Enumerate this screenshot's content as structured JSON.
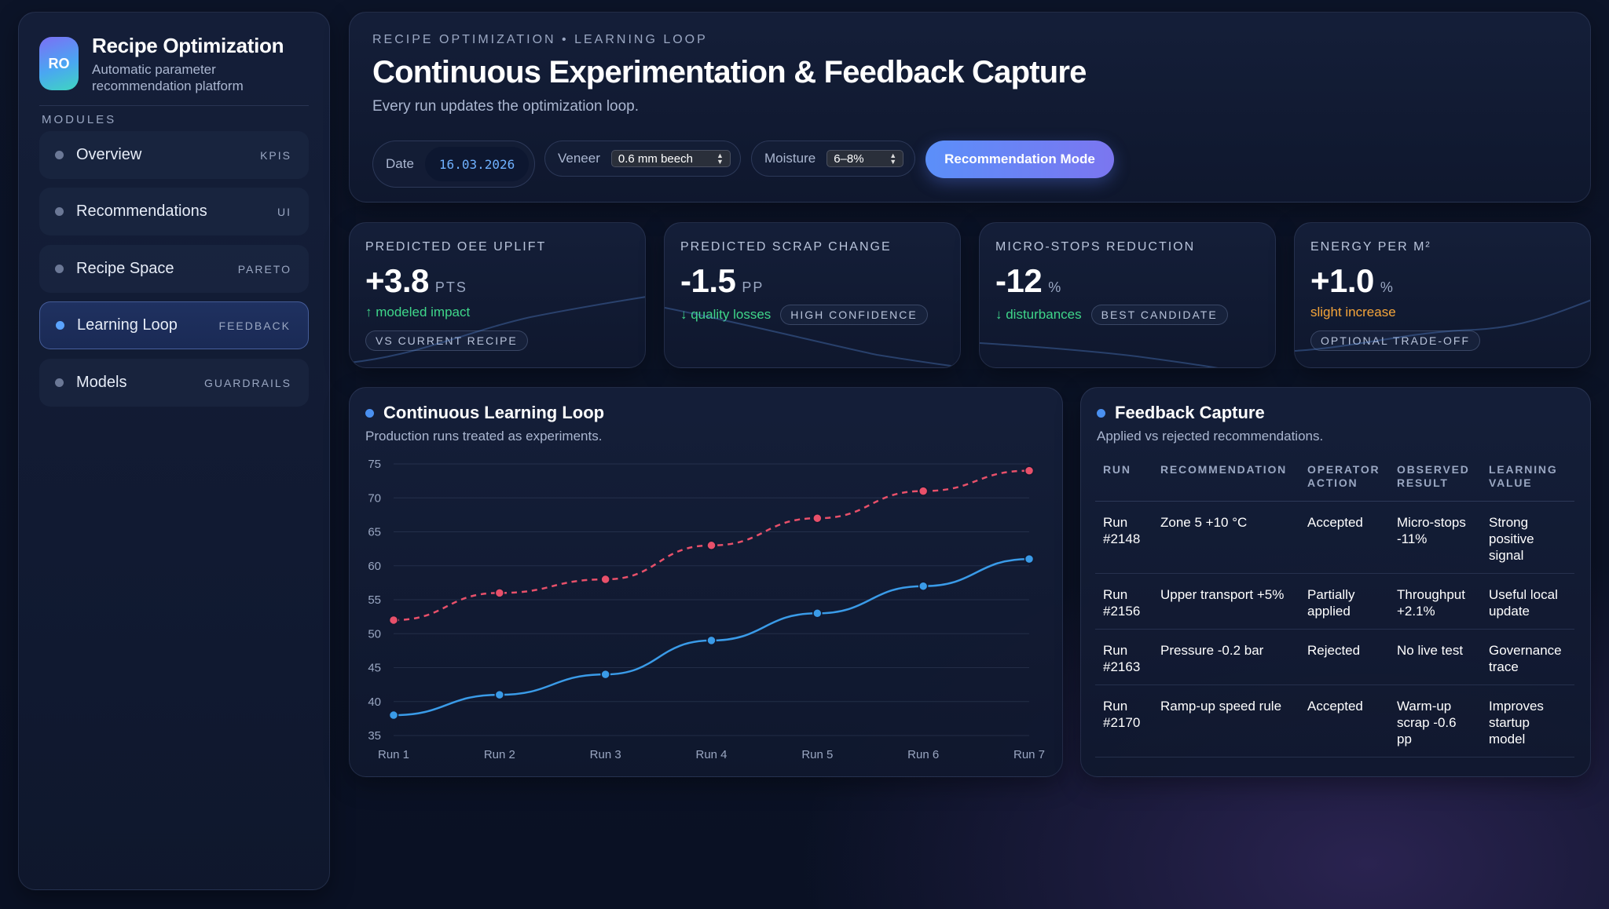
{
  "sidebar": {
    "logo": "RO",
    "title": "Recipe Optimization",
    "subtitle": "Automatic parameter recommendation platform",
    "section": "MODULES",
    "items": [
      {
        "label": "Overview",
        "tag": "KPIS"
      },
      {
        "label": "Recommendations",
        "tag": "UI"
      },
      {
        "label": "Recipe Space",
        "tag": "PARETO"
      },
      {
        "label": "Learning Loop",
        "tag": "FEEDBACK",
        "active": true
      },
      {
        "label": "Models",
        "tag": "GUARDRAILS"
      }
    ]
  },
  "header": {
    "eyebrow": "RECIPE OPTIMIZATION • LEARNING LOOP",
    "title": "Continuous Experimentation & Feedback Capture",
    "subtitle": "Every run updates the optimization loop.",
    "date_label": "Date",
    "date_value": "16.03.2026",
    "veneer_label": "Veneer",
    "veneer_value": "0.6 mm beech",
    "moisture_label": "Moisture",
    "moisture_value": "6–8%",
    "mode_button": "Recommendation Mode"
  },
  "kpis": [
    {
      "label": "PREDICTED OEE UPLIFT",
      "value": "+3.8",
      "unit": "PTS",
      "trend": "↑ modeled impact",
      "badge": "VS CURRENT RECIPE"
    },
    {
      "label": "PREDICTED SCRAP CHANGE",
      "value": "-1.5",
      "unit": "PP",
      "trend": "↓ quality losses",
      "badge": "HIGH CONFIDENCE"
    },
    {
      "label": "MICRO-STOPS REDUCTION",
      "value": "-12",
      "unit": "%",
      "trend": "↓ disturbances",
      "badge": "BEST CANDIDATE"
    },
    {
      "label": "ENERGY PER M²",
      "value": "+1.0",
      "unit": "%",
      "trend": "slight increase",
      "badge": "OPTIONAL TRADE-OFF"
    }
  ],
  "chart_panel": {
    "title": "Continuous Learning Loop",
    "subtitle": "Production runs treated as experiments."
  },
  "chart_data": {
    "type": "line",
    "categories": [
      "Run 1",
      "Run 2",
      "Run 3",
      "Run 4",
      "Run 5",
      "Run 6",
      "Run 7"
    ],
    "series": [
      {
        "values": [
          52,
          56,
          58,
          63,
          67,
          71,
          74
        ],
        "color": "#e8506a",
        "style": "dashed"
      },
      {
        "values": [
          38,
          41,
          44,
          49,
          53,
          57,
          61
        ],
        "color": "#3a9be8",
        "style": "solid"
      }
    ],
    "ylim": [
      35,
      75
    ],
    "yticks": [
      75,
      70,
      65,
      60,
      55,
      50,
      45,
      40,
      35
    ],
    "grid": true,
    "title": "",
    "xlabel": "",
    "ylabel": ""
  },
  "feedback": {
    "title": "Feedback Capture",
    "subtitle": "Applied vs rejected recommendations.",
    "columns": [
      "RUN",
      "RECOMMENDATION",
      "OPERATOR ACTION",
      "OBSERVED RESULT",
      "LEARNING VALUE"
    ],
    "rows": [
      [
        "Run #2148",
        "Zone 5 +10 °C",
        "Accepted",
        "Micro-stops -11%",
        "Strong positive signal"
      ],
      [
        "Run #2156",
        "Upper transport +5%",
        "Partially applied",
        "Throughput +2.1%",
        "Useful local update"
      ],
      [
        "Run #2163",
        "Pressure -0.2 bar",
        "Rejected",
        "No live test",
        "Governance trace"
      ],
      [
        "Run #2170",
        "Ramp-up speed rule",
        "Accepted",
        "Warm-up scrap -0.6 pp",
        "Improves startup model"
      ]
    ]
  }
}
